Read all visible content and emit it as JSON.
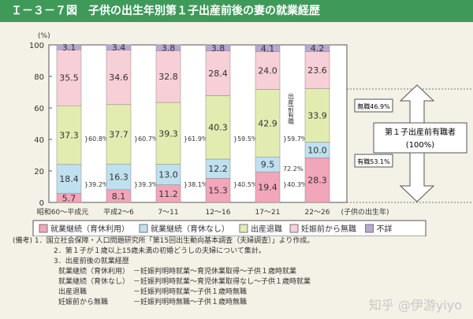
{
  "title": "Ｉ－３－７図　子供の出生年別第１子出産前後の妻の就業経歴",
  "chart_data": {
    "type": "bar",
    "stacked": true,
    "ylabel": "(%)",
    "ylim": [
      0,
      100
    ],
    "yticks": [
      0,
      20,
      40,
      60,
      80,
      100
    ],
    "xlabel": "(子供の出生年)",
    "categories": [
      "昭和60～平成元",
      "平成2～6",
      "7～11",
      "12～16",
      "17～21",
      "22～26"
    ],
    "series": [
      {
        "name": "就業継続（育休利用）",
        "color": "#f2a6b9",
        "values": [
          5.7,
          8.1,
          11.2,
          15.3,
          19.4,
          28.3
        ]
      },
      {
        "name": "就業継続（育休なし）",
        "color": "#bfe0ef",
        "values": [
          18.4,
          16.3,
          13.0,
          12.2,
          9.5,
          10.0
        ]
      },
      {
        "name": "出産退職",
        "color": "#e3ecb0",
        "values": [
          37.3,
          37.7,
          39.3,
          40.3,
          42.9,
          33.9
        ]
      },
      {
        "name": "妊娠前から無職",
        "color": "#f7cfd6",
        "values": [
          35.5,
          34.6,
          32.8,
          28.4,
          24.0,
          23.6
        ]
      },
      {
        "name": "不詳",
        "color": "#b9a7d4",
        "values": [
          3.1,
          3.4,
          3.8,
          3.8,
          4.1,
          4.2
        ]
      }
    ],
    "quit_share": [
      "60.8%",
      "60.7%",
      "61.9%",
      "59.5%",
      "59.7%"
    ],
    "continue_share": [
      "39.2%",
      "39.3%",
      "38.1%",
      "40.5%",
      "40.3%"
    ],
    "latest_unemployed": "無職46.9%",
    "latest_employed": "有職53.1%",
    "vertical_label": "出産前有職",
    "vertical_value": "72.2%",
    "arrow_label_1": "第１子出産前有職者",
    "arrow_label_2": "(100%)"
  },
  "notes": {
    "head": "(備考)",
    "n1": "1．国立社会保障・人口問題研究所「第15回出生動向基本調査（夫婦調査）」より作成。",
    "n2": "2．第１子が１歳以上15歳未満の初婚どうしの夫婦について集計。",
    "n3": "3．出産前後の就業経歴",
    "defs": [
      [
        "就業継続（育休利用）",
        "－妊娠判明時就業～育児休業取得～子供１歳時就業"
      ],
      [
        "就業継続（育休なし）",
        "－妊娠判明時就業～育児休業取得なし～子供１歳時就業"
      ],
      [
        "出産退職",
        "－妊娠判明時就業～子供１歳時無職"
      ],
      [
        "妊娠前から無職",
        "－妊娠判明時無職～子供１歳時無職"
      ]
    ]
  },
  "watermark": "知乎 @伊游yiyo"
}
